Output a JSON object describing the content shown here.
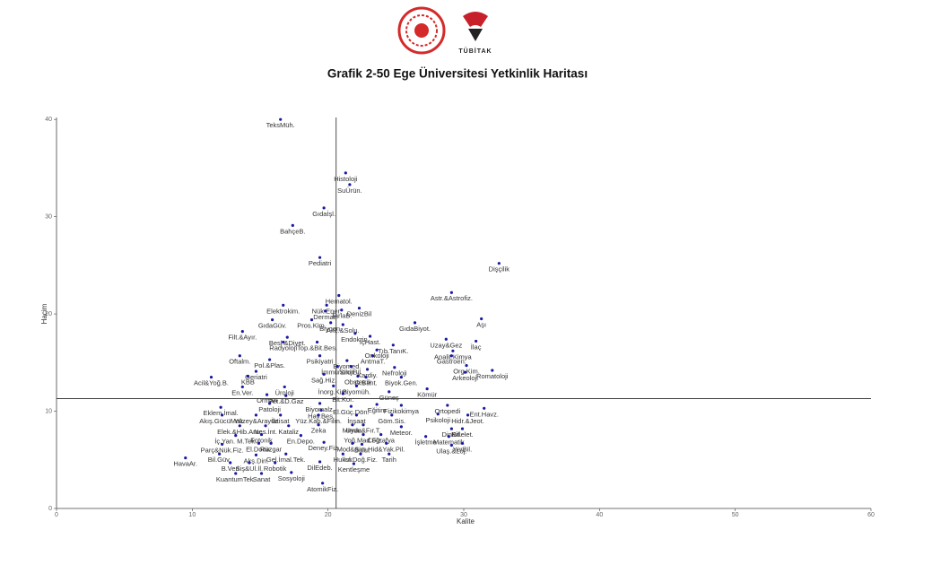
{
  "header": {
    "logo_text": "TÜBİTAK"
  },
  "chart_data": {
    "type": "scatter",
    "title": "Grafik 2-50 Ege Üniversitesi Yetkinlik Haritası",
    "x_label": "Kalite",
    "y_label": "Hacim",
    "xlim": [
      0,
      60
    ],
    "ylim": [
      0,
      40.2
    ],
    "xticks": [
      0,
      10,
      20,
      30,
      40,
      50,
      60
    ],
    "yticks": [
      0,
      10,
      20,
      30,
      40
    ],
    "color": "#1a1aa0",
    "reference_lines": {
      "x": 20.6,
      "y": 11.3
    },
    "labels": [
      "TeksMüh.",
      "Histoloji",
      "SuÜrün.",
      "Gıdaİşl.",
      "BahçeB.",
      "Pediatri",
      "Dişçilik",
      "Hematol.",
      "Astr.&Astrofiz.",
      "Elektrokim.",
      "Nük.Ener.",
      "DenizBil",
      "Dermat.",
      "TarlaB.",
      "GıdaGüv.",
      "Pros.Kim.",
      "GıdaBiyot.",
      "Aşı",
      "Biyoen.",
      "Akç.&Solu.",
      "Filt.&Ayır.",
      "Besl.&Diyet.",
      "Endokrin.",
      "İçHast.",
      "Uzay&Gez",
      "İlaç",
      "Radyoloji",
      "Top.&Bit.Bes.",
      "Tıb.TanıK.",
      "Onkoloji",
      "Analit.Kimya",
      "Oftalm.",
      "Pol.&Plas.",
      "Psikiyatri",
      "Gastroen.",
      "AntmaT.",
      "Biyomed.",
      "Org.Kim.",
      "İmmünoloji",
      "SinirBil.",
      "Kardiy.",
      "Nefroloji",
      "Geriatri",
      "KBB",
      "Arkeoloji",
      "Romatoloji",
      "Sağ.Hiz.",
      "Obstetrik",
      "G.Bant.",
      "Biyok.Gen.",
      "Acil&Yoğ.B.",
      "En.Ver.",
      "Üroloji",
      "İnorg.Kim.",
      "Biyomüh.",
      "Kömür",
      "Orman",
      "Pet.&D.Gaz",
      "Bit.Kor.",
      "Güneş",
      "Eklem.İmal.",
      "Patoloji",
      "Biyomalz.",
      "Hay.Bes.",
      "El.Güç.Dön.",
      "Eğitim",
      "Fizikokimya",
      "Ortopedi",
      "Ent.Havz.",
      "Akış.GücüMak.",
      "Yüzey&Arayüz",
      "İktisat",
      "Yüz.Kap.&Film.",
      "İnşaat",
      "Göm.Sis.",
      "Psikoloji",
      "Hidr.&Jeot.",
      "Elek.&Hib.Araç",
      "Nes.İnt.",
      "Kataliz",
      "Zeka",
      "Mimar.",
      "Uydu&Fır.T.",
      "Meteor.",
      "DinBil.",
      "Kitlelet.",
      "İç.Yan. M.Tek.",
      "Fotonik",
      "En.Depo.",
      "Yoğ.Mad.Fiz.",
      "Coğrafya",
      "İşletme",
      "Matematik",
      "Parç&Nük.Fiz.",
      "El.Dona.",
      "Rüzgar",
      "Deney.Fiz.",
      "Mod&Sim.",
      "Bulut",
      "Hid&Yak.Pil.",
      "YerBil.",
      "Ulaş.&Loj.",
      "Bil.Güv.",
      "Akş.Din.",
      "Gel.İmal.Tek.",
      "Hukuk",
      "İst.Doğ.Fiz.",
      "Tarih",
      "HavaAr.",
      "B.Veri",
      "Siş&Ul.İl.",
      "Robotik",
      "DilEdeb.",
      "Kentleşme",
      "KuantumTek.",
      "Sanat",
      "Sosyoloji",
      "AtomikFiz."
    ],
    "x": [
      16.5,
      21.3,
      21.6,
      19.7,
      17.4,
      19.4,
      32.6,
      20.8,
      29.1,
      16.7,
      19.9,
      22.3,
      19.8,
      21.0,
      15.9,
      18.8,
      26.4,
      31.3,
      20.2,
      21.1,
      13.7,
      17.0,
      22.0,
      23.1,
      28.7,
      30.9,
      16.7,
      19.2,
      24.8,
      23.6,
      29.2,
      13.5,
      15.7,
      19.4,
      29.1,
      23.3,
      21.4,
      30.2,
      20.7,
      21.7,
      22.9,
      24.9,
      14.7,
      14.1,
      30.1,
      32.1,
      19.7,
      22.2,
      22.8,
      25.4,
      11.4,
      13.7,
      16.8,
      20.4,
      22.1,
      27.3,
      15.5,
      16.9,
      21.1,
      24.5,
      12.1,
      15.7,
      19.4,
      19.5,
      21.7,
      23.6,
      25.4,
      28.8,
      31.5,
      12.2,
      14.7,
      16.5,
      19.3,
      22.1,
      24.7,
      28.1,
      30.3,
      13.5,
      15.4,
      17.1,
      19.3,
      21.8,
      22.6,
      25.4,
      29.1,
      29.9,
      13.2,
      15.1,
      18.0,
      22.6,
      23.9,
      27.2,
      28.9,
      12.2,
      14.9,
      15.8,
      19.7,
      21.8,
      22.5,
      24.3,
      29.9,
      29.1,
      12.0,
      14.7,
      16.9,
      21.1,
      22.4,
      24.5,
      9.5,
      12.8,
      14.2,
      16.1,
      19.4,
      21.9,
      13.2,
      15.1,
      17.3,
      19.6
    ],
    "values": [
      40.0,
      34.5,
      33.3,
      30.9,
      29.1,
      25.8,
      25.2,
      21.9,
      22.2,
      20.9,
      20.9,
      20.6,
      20.3,
      20.4,
      19.4,
      19.4,
      19.1,
      19.5,
      19.1,
      18.9,
      18.2,
      17.6,
      18.0,
      17.7,
      17.4,
      17.2,
      17.1,
      17.1,
      16.8,
      16.3,
      16.2,
      15.7,
      15.3,
      15.7,
      15.7,
      15.7,
      15.2,
      14.7,
      14.6,
      14.6,
      14.3,
      14.5,
      14.1,
      13.6,
      14.0,
      14.2,
      13.8,
      13.6,
      13.5,
      13.5,
      13.5,
      12.5,
      12.5,
      12.6,
      12.6,
      12.3,
      11.7,
      11.6,
      11.8,
      12.0,
      10.4,
      10.8,
      10.8,
      10.1,
      10.5,
      10.7,
      10.6,
      10.6,
      10.3,
      9.6,
      9.6,
      9.6,
      9.6,
      9.6,
      9.6,
      9.7,
      9.6,
      8.5,
      8.5,
      8.5,
      8.6,
      8.6,
      8.6,
      8.4,
      8.2,
      8.2,
      7.5,
      7.6,
      7.5,
      7.6,
      7.6,
      7.4,
      7.4,
      6.6,
      6.7,
      6.7,
      6.8,
      6.7,
      6.6,
      6.7,
      6.7,
      6.5,
      5.6,
      5.5,
      5.6,
      5.6,
      5.6,
      5.6,
      5.2,
      4.7,
      4.7,
      4.7,
      4.8,
      4.6,
      3.6,
      3.6,
      3.7,
      2.6
    ]
  }
}
